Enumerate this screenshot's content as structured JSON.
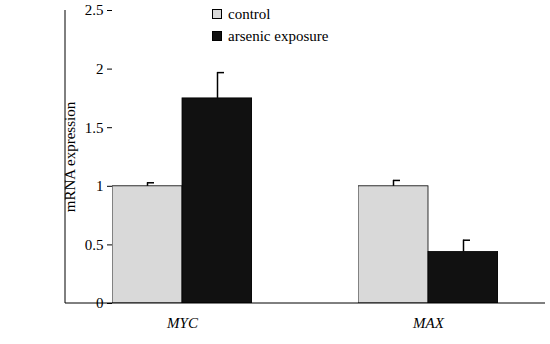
{
  "chart_data": {
    "type": "bar",
    "categories": [
      "MYC",
      "MAX"
    ],
    "ylabel": "mRNA expression",
    "series": [
      {
        "name": "control",
        "color": "#d9d9d9",
        "values": [
          1,
          1
        ],
        "errors": [
          0.03,
          0.05
        ]
      },
      {
        "name": "arsenic exposure",
        "color": "#111111",
        "values": [
          1.75,
          0.44
        ],
        "errors": [
          0.22,
          0.1
        ]
      }
    ],
    "ylim": [
      0,
      2.5
    ],
    "yticks": [
      0,
      0.5,
      1,
      1.5,
      2,
      2.5
    ],
    "legend": "upper left"
  }
}
